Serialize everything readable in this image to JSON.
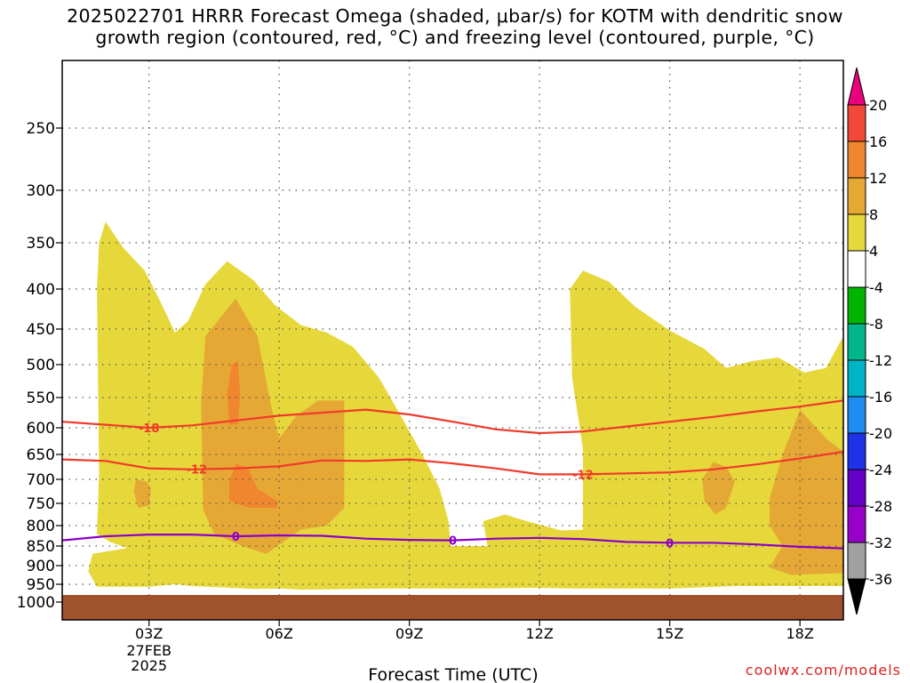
{
  "title_line1": "2025022701 HRRR Forecast Omega (shaded, μbar/s) for KOTM with dendritic snow",
  "title_line2": "growth region (contoured, red, °C) and freezing level (contoured, purple, °C)",
  "credit": "coolwx.com/models",
  "chart_data": {
    "type": "time-height cross section (shaded contours with line contours)",
    "title": "2025022701 HRRR Forecast Omega (shaded, μbar/s) for KOTM with dendritic snow growth region (contoured, red, °C) and freezing level (contoured, purple, °C)",
    "xlabel": "Forecast Time (UTC)",
    "x_ticks": [
      {
        "hour": 3,
        "label": "03Z",
        "sub": [
          "27FEB",
          "2025"
        ]
      },
      {
        "hour": 6,
        "label": "06Z"
      },
      {
        "hour": 9,
        "label": "09Z"
      },
      {
        "hour": 12,
        "label": "12Z"
      },
      {
        "hour": 15,
        "label": "15Z"
      },
      {
        "hour": 18,
        "label": "18Z"
      }
    ],
    "xlim_hours_utc": [
      1,
      19
    ],
    "y_ticks": [
      250,
      300,
      350,
      400,
      450,
      500,
      550,
      600,
      650,
      700,
      750,
      800,
      850,
      900,
      950,
      1000
    ],
    "ylim": [
      200,
      1035
    ],
    "grid": true,
    "colorbar": {
      "placement": "right",
      "ticks": [
        20,
        16,
        12,
        8,
        4,
        -4,
        -8,
        -12,
        -16,
        -20,
        -24,
        -28,
        -32,
        -36
      ],
      "bins": [
        {
          "range": [
            20,
            24
          ],
          "color": "#e8007c"
        },
        {
          "range": [
            16,
            20
          ],
          "color": "#f24838"
        },
        {
          "range": [
            12,
            16
          ],
          "color": "#f0862e"
        },
        {
          "range": [
            8,
            12
          ],
          "color": "#e6a835"
        },
        {
          "range": [
            4,
            8
          ],
          "color": "#e6d83a"
        },
        {
          "range": [
            -4,
            4
          ],
          "color": "#ffffff"
        },
        {
          "range": [
            -8,
            -4
          ],
          "color": "#00b400"
        },
        {
          "range": [
            -12,
            -8
          ],
          "color": "#00b48c"
        },
        {
          "range": [
            -16,
            -12
          ],
          "color": "#00b4c8"
        },
        {
          "range": [
            -20,
            -16
          ],
          "color": "#1e8cf0"
        },
        {
          "range": [
            -24,
            -20
          ],
          "color": "#1e32e6"
        },
        {
          "range": [
            -28,
            -24
          ],
          "color": "#6400c8"
        },
        {
          "range": [
            -32,
            -28
          ],
          "color": "#9600c8"
        },
        {
          "range": [
            -36,
            -32
          ],
          "color": "#a0a0a0"
        },
        {
          "range": [
            -40,
            -36
          ],
          "color": "#000000"
        }
      ]
    },
    "ground_color": "#a0522d",
    "shaded_regions": [
      {
        "level": "4-8",
        "color": "#e6d83a",
        "points": [
          [
            2.0,
            330
          ],
          [
            2.4,
            355
          ],
          [
            2.9,
            380
          ],
          [
            3.3,
            420
          ],
          [
            3.6,
            455
          ],
          [
            3.9,
            440
          ],
          [
            4.3,
            395
          ],
          [
            4.8,
            370
          ],
          [
            5.4,
            390
          ],
          [
            5.9,
            420
          ],
          [
            6.5,
            445
          ],
          [
            7.1,
            455
          ],
          [
            7.7,
            475
          ],
          [
            8.3,
            520
          ],
          [
            8.8,
            580
          ],
          [
            9.3,
            650
          ],
          [
            9.7,
            720
          ],
          [
            9.9,
            790
          ],
          [
            9.95,
            850
          ],
          [
            10.8,
            850
          ],
          [
            10.7,
            790
          ],
          [
            11.2,
            775
          ],
          [
            11.7,
            790
          ],
          [
            12.5,
            812
          ],
          [
            13.0,
            810
          ],
          [
            13.0,
            640
          ],
          [
            12.75,
            520
          ],
          [
            12.7,
            400
          ],
          [
            13.0,
            380
          ],
          [
            13.6,
            392
          ],
          [
            14.2,
            422
          ],
          [
            15.0,
            452
          ],
          [
            15.8,
            478
          ],
          [
            16.3,
            505
          ],
          [
            16.9,
            495
          ],
          [
            17.5,
            490
          ],
          [
            18.1,
            512
          ],
          [
            18.6,
            505
          ],
          [
            19.0,
            460
          ],
          [
            19.0,
            955
          ],
          [
            16.5,
            955
          ],
          [
            15.0,
            962
          ],
          [
            12.8,
            962
          ],
          [
            12.0,
            960
          ],
          [
            10.4,
            962
          ],
          [
            8.4,
            962
          ],
          [
            6.5,
            965
          ],
          [
            6.0,
            962
          ],
          [
            5.4,
            963
          ],
          [
            4.0,
            955
          ],
          [
            3.6,
            950
          ],
          [
            3.0,
            957
          ],
          [
            1.8,
            957
          ],
          [
            1.6,
            915
          ],
          [
            1.7,
            870
          ],
          [
            2.5,
            855
          ],
          [
            2.1,
            840
          ],
          [
            1.8,
            820
          ],
          [
            1.85,
            690
          ],
          [
            1.8,
            400
          ],
          [
            1.85,
            350
          ]
        ]
      },
      {
        "level": "8-12",
        "color": "#e6a835",
        "points": [
          [
            5.0,
            412
          ],
          [
            5.5,
            460
          ],
          [
            5.8,
            560
          ],
          [
            6.0,
            620
          ],
          [
            6.4,
            580
          ],
          [
            6.9,
            555
          ],
          [
            7.5,
            555
          ],
          [
            7.5,
            760
          ],
          [
            7.1,
            800
          ],
          [
            6.5,
            810
          ],
          [
            5.7,
            870
          ],
          [
            5.2,
            852
          ],
          [
            4.5,
            820
          ],
          [
            4.25,
            765
          ],
          [
            4.2,
            560
          ],
          [
            4.3,
            460
          ]
        ]
      },
      {
        "level": "8-12",
        "color": "#e6a835",
        "points": [
          [
            2.7,
            700
          ],
          [
            2.95,
            705
          ],
          [
            3.05,
            720
          ],
          [
            3.0,
            755
          ],
          [
            2.75,
            760
          ],
          [
            2.65,
            725
          ]
        ]
      },
      {
        "level": "8-12",
        "color": "#e6a835",
        "points": [
          [
            16.0,
            665
          ],
          [
            16.3,
            675
          ],
          [
            16.5,
            705
          ],
          [
            16.3,
            760
          ],
          [
            16.05,
            775
          ],
          [
            15.8,
            745
          ],
          [
            15.75,
            700
          ]
        ]
      },
      {
        "level": "8-12",
        "color": "#e6a835",
        "points": [
          [
            18.0,
            570
          ],
          [
            18.6,
            620
          ],
          [
            19.0,
            645
          ],
          [
            19.0,
            920
          ],
          [
            17.8,
            925
          ],
          [
            17.3,
            905
          ],
          [
            17.6,
            850
          ],
          [
            17.3,
            800
          ],
          [
            17.3,
            740
          ],
          [
            17.6,
            650
          ]
        ]
      },
      {
        "level": "12-16",
        "color": "#f0862e",
        "points": [
          [
            4.9,
            500
          ],
          [
            5.05,
            495
          ],
          [
            5.1,
            545
          ],
          [
            5.05,
            595
          ],
          [
            4.85,
            595
          ],
          [
            4.8,
            545
          ]
        ]
      },
      {
        "level": "12-16",
        "color": "#f0862e",
        "points": [
          [
            5.0,
            668
          ],
          [
            5.3,
            680
          ],
          [
            5.5,
            720
          ],
          [
            5.95,
            745
          ],
          [
            5.95,
            760
          ],
          [
            5.3,
            760
          ],
          [
            4.85,
            745
          ],
          [
            4.85,
            705
          ]
        ]
      }
    ],
    "contours": [
      {
        "value": -18,
        "label": "-18",
        "color": "#f0392b",
        "label_at_hour": 3.0,
        "points": [
          [
            1.0,
            590
          ],
          [
            2.0,
            595
          ],
          [
            3.0,
            600
          ],
          [
            4.0,
            596
          ],
          [
            5.0,
            588
          ],
          [
            6.0,
            580
          ],
          [
            7.0,
            575
          ],
          [
            8.0,
            570
          ],
          [
            9.0,
            578
          ],
          [
            10.0,
            590
          ],
          [
            11.0,
            603
          ],
          [
            12.0,
            610
          ],
          [
            13.0,
            607
          ],
          [
            14.0,
            598
          ],
          [
            15.0,
            590
          ],
          [
            16.0,
            582
          ],
          [
            17.0,
            573
          ],
          [
            18.0,
            565
          ],
          [
            19.0,
            555
          ]
        ]
      },
      {
        "value": -12,
        "label": "-12",
        "color": "#f0392b",
        "label_at_hours": [
          4.1,
          13.0
        ],
        "points": [
          [
            1.0,
            660
          ],
          [
            2.0,
            663
          ],
          [
            3.0,
            678
          ],
          [
            4.0,
            680
          ],
          [
            5.0,
            678
          ],
          [
            6.0,
            674
          ],
          [
            7.0,
            662
          ],
          [
            8.0,
            663
          ],
          [
            9.0,
            660
          ],
          [
            10.0,
            668
          ],
          [
            11.0,
            678
          ],
          [
            12.0,
            690
          ],
          [
            13.0,
            690
          ],
          [
            14.0,
            688
          ],
          [
            15.0,
            686
          ],
          [
            16.0,
            680
          ],
          [
            17.0,
            670
          ],
          [
            18.0,
            658
          ],
          [
            19.0,
            645
          ]
        ]
      },
      {
        "value": 0,
        "label": "0",
        "color": "#8c00c8",
        "label_at_hours": [
          5.0,
          10.0,
          15.0
        ],
        "points": [
          [
            1.0,
            836
          ],
          [
            2.0,
            826
          ],
          [
            3.0,
            822
          ],
          [
            4.0,
            822
          ],
          [
            5.0,
            826
          ],
          [
            6.0,
            824
          ],
          [
            7.0,
            825
          ],
          [
            8.0,
            832
          ],
          [
            9.0,
            835
          ],
          [
            10.0,
            836
          ],
          [
            11.0,
            832
          ],
          [
            12.0,
            830
          ],
          [
            13.0,
            833
          ],
          [
            14.0,
            840
          ],
          [
            15.0,
            842
          ],
          [
            16.0,
            842
          ],
          [
            17.0,
            846
          ],
          [
            18.0,
            852
          ],
          [
            19.0,
            856
          ]
        ]
      }
    ]
  }
}
